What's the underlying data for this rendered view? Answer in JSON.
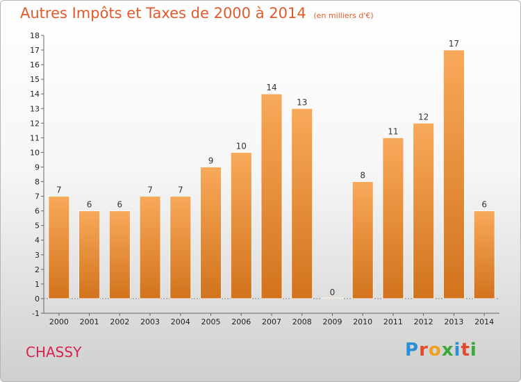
{
  "title": "Autres Impôts et Taxes de 2000 à 2014",
  "subtitle": "(en milliers d'€)",
  "city": "CHASSY",
  "brand": "Proxiti",
  "colors": {
    "bar_top": "#f8a95a",
    "bar_bottom": "#d2731d",
    "title": "#e05a2b",
    "city": "#d9234d"
  },
  "chart_data": {
    "type": "bar",
    "title": "Autres Impôts et Taxes de 2000 à 2014",
    "subtitle": "(en milliers d'€)",
    "categories": [
      "2000",
      "2001",
      "2002",
      "2003",
      "2004",
      "2005",
      "2006",
      "2007",
      "2008",
      "2009",
      "2010",
      "2011",
      "2012",
      "2013",
      "2014"
    ],
    "values": [
      7,
      6,
      6,
      7,
      7,
      9,
      10,
      14,
      13,
      0,
      8,
      11,
      12,
      17,
      6
    ],
    "ylim": [
      -1,
      18
    ],
    "yticks": [
      -1,
      0,
      1,
      2,
      3,
      4,
      5,
      6,
      7,
      8,
      9,
      10,
      11,
      12,
      13,
      14,
      15,
      16,
      17,
      18
    ],
    "grid": false,
    "legend": "none"
  }
}
